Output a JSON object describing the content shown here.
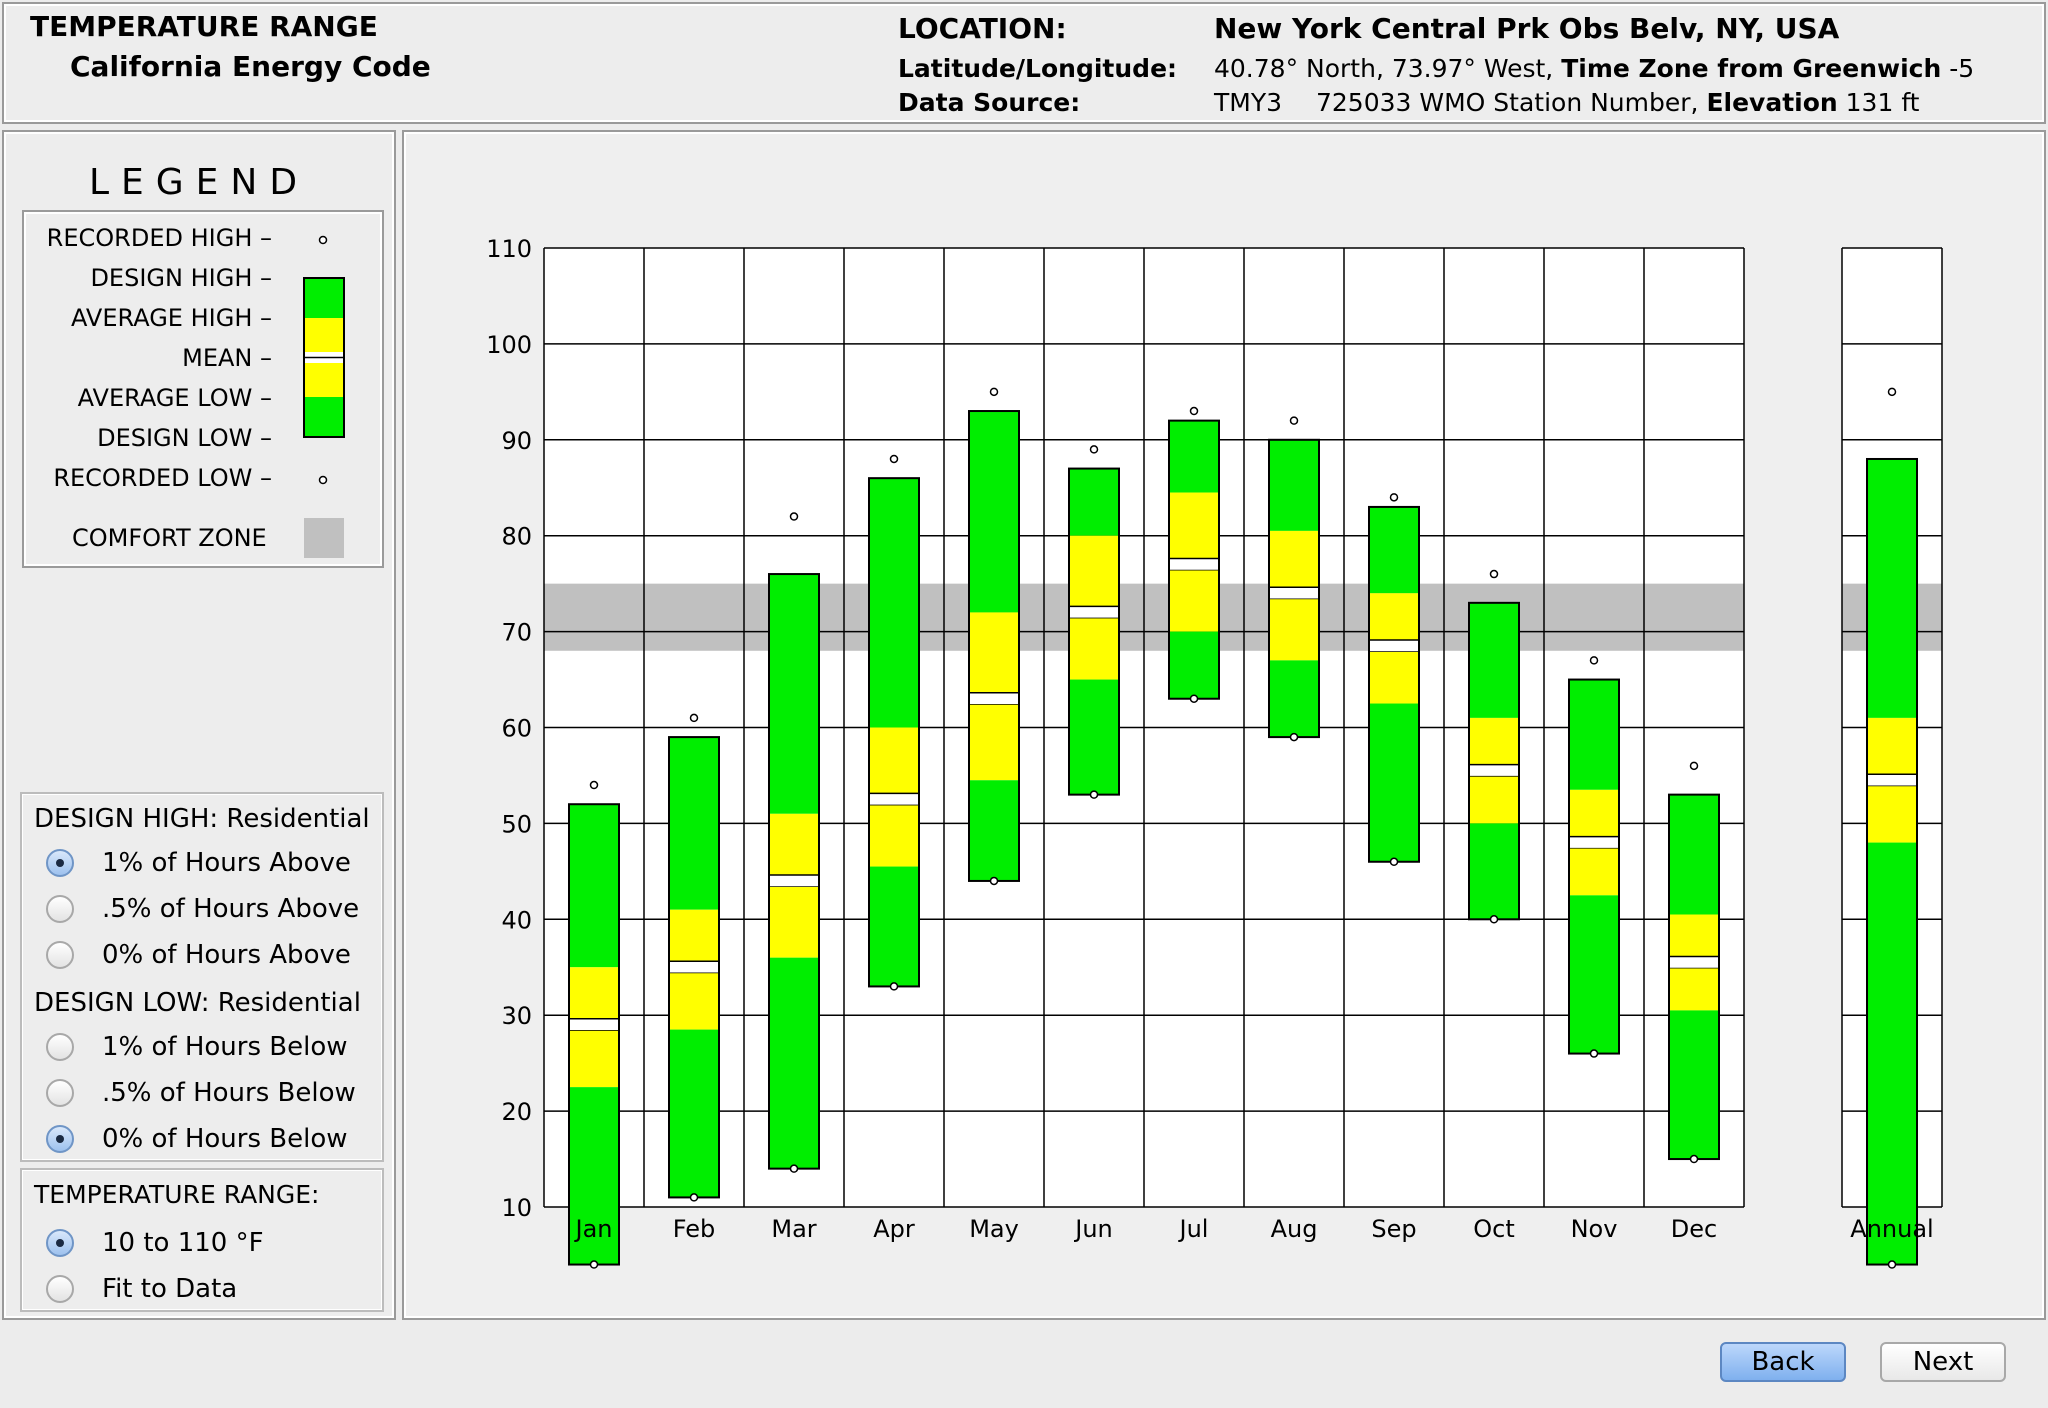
{
  "header": {
    "title": "TEMPERATURE RANGE",
    "subtitle": "California Energy Code",
    "location_label": "LOCATION:",
    "location_value": "New York Central Prk Obs Belv, NY, USA",
    "latlon_label": "Latitude/Longitude:",
    "latlon_value": "40.78° North, 73.97° West,",
    "timezone_label": "Time Zone from Greenwich",
    "timezone_value": "-5",
    "source_label": "Data Source:",
    "source_value": "TMY3",
    "station_value": "725033 WMO Station Number,",
    "elevation_label": "Elevation",
    "elevation_value": "131 ft"
  },
  "legend": {
    "title": "LEGEND",
    "items": [
      "RECORDED HIGH –",
      "DESIGN HIGH –",
      "AVERAGE HIGH –",
      "MEAN –",
      "AVERAGE LOW –",
      "DESIGN LOW –",
      "RECORDED LOW –"
    ],
    "comfort_label": "COMFORT ZONE"
  },
  "design_high": {
    "title": "DESIGN HIGH:  Residential",
    "options": [
      "1% of Hours Above",
      ".5% of Hours Above",
      "0% of Hours Above"
    ],
    "selected": 0
  },
  "design_low": {
    "title": "DESIGN LOW:  Residential",
    "options": [
      "1% of Hours Below",
      ".5% of Hours Below",
      "0% of Hours Below"
    ],
    "selected": 2
  },
  "temp_range": {
    "title": "TEMPERATURE RANGE:",
    "options": [
      "10 to 110 °F",
      "Fit to Data"
    ],
    "selected": 0
  },
  "buttons": {
    "back": "Back",
    "next": "Next"
  },
  "colors": {
    "design": "#00ee00",
    "average": "#ffff00",
    "comfort": "#c0c0c0",
    "grid": "#000000"
  },
  "chart_data": {
    "type": "bar",
    "title": "Temperature Range",
    "ylim": [
      10,
      110
    ],
    "yticks": [
      10,
      20,
      30,
      40,
      50,
      60,
      70,
      80,
      90,
      100,
      110
    ],
    "comfort_zone": [
      68,
      75
    ],
    "categories": [
      "Jan",
      "Feb",
      "Mar",
      "Apr",
      "May",
      "Jun",
      "Jul",
      "Aug",
      "Sep",
      "Oct",
      "Nov",
      "Dec",
      "Annual"
    ],
    "recorded_high": [
      54,
      61,
      82,
      88,
      95,
      89,
      93,
      92,
      84,
      76,
      67,
      56,
      95
    ],
    "design_high": [
      52,
      59,
      76,
      86,
      93,
      87,
      92,
      90,
      83,
      73,
      65,
      53,
      88
    ],
    "average_high": [
      35,
      41,
      51,
      60,
      72,
      80,
      84.5,
      80.5,
      74,
      61,
      53.5,
      40.5,
      61
    ],
    "mean": [
      29,
      35,
      44,
      52.5,
      63,
      72,
      77,
      74,
      68.5,
      55.5,
      48,
      35.5,
      54.5
    ],
    "average_low": [
      22.5,
      28.5,
      36,
      45.5,
      54.5,
      65,
      70,
      67,
      62.5,
      50,
      42.5,
      30.5,
      48
    ],
    "design_low": [
      4,
      11,
      14,
      33,
      44,
      53,
      63,
      59,
      46,
      40,
      26,
      15,
      4
    ],
    "recorded_low": [
      4,
      11,
      14,
      33,
      44,
      53,
      63,
      59,
      46,
      40,
      26,
      15,
      4
    ]
  }
}
